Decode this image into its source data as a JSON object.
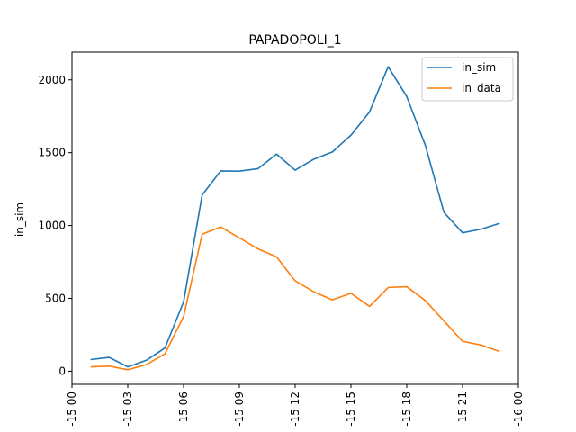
{
  "chart_data": {
    "type": "line",
    "title": "PAPADOPOLI_1",
    "xlabel": "",
    "ylabel": "in_sim",
    "x": [
      1,
      2,
      3,
      4,
      5,
      6,
      7,
      8,
      9,
      10,
      11,
      12,
      13,
      14,
      15,
      16,
      17,
      18,
      19,
      20,
      21,
      22,
      23
    ],
    "series": [
      {
        "name": "in_sim",
        "color": "#1f77b4",
        "values": [
          80,
          95,
          30,
          75,
          160,
          475,
          1210,
          1375,
          1373,
          1390,
          1490,
          1380,
          1455,
          1505,
          1620,
          1780,
          2090,
          1885,
          1550,
          1090,
          950,
          975,
          1015
        ]
      },
      {
        "name": "in_data",
        "color": "#ff7f0e",
        "values": [
          30,
          35,
          10,
          45,
          120,
          375,
          940,
          990,
          915,
          840,
          785,
          620,
          545,
          490,
          535,
          445,
          575,
          580,
          485,
          345,
          205,
          180,
          135
        ]
      }
    ],
    "xlim": [
      0,
      24
    ],
    "xticks": [
      0,
      3,
      6,
      9,
      12,
      15,
      18,
      21,
      24
    ],
    "xtick_labels": [
      "-15 00",
      "-15 03",
      "-15 06",
      "-15 09",
      "-15 12",
      "-15 15",
      "-15 18",
      "-15 21",
      "-16 00"
    ],
    "ylim": [
      -90,
      2190
    ],
    "yticks": [
      0,
      500,
      1000,
      1500,
      2000
    ],
    "ytick_labels": [
      "0",
      "500",
      "1000",
      "1500",
      "2000"
    ],
    "grid": false,
    "legend_position": "top-right"
  }
}
